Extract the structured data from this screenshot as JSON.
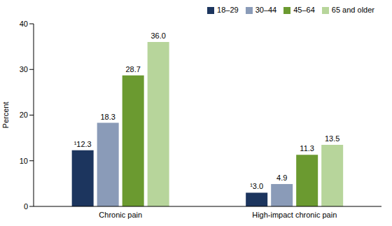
{
  "chart_data": {
    "type": "bar",
    "categories": [
      "Chronic pain",
      "High-impact chronic pain"
    ],
    "series": [
      {
        "name": "18–29",
        "color": "#1c355e",
        "values": [
          12.3,
          3.0
        ],
        "value_labels": [
          "¹12.3",
          "¹3.0"
        ]
      },
      {
        "name": "30–44",
        "color": "#8a9bb8",
        "values": [
          18.3,
          4.9
        ],
        "value_labels": [
          "18.3",
          "4.9"
        ]
      },
      {
        "name": "45–64",
        "color": "#6b9a30",
        "values": [
          28.7,
          11.3
        ],
        "value_labels": [
          "28.7",
          "11.3"
        ]
      },
      {
        "name": "65 and older",
        "color": "#b7d59b",
        "values": [
          36.0,
          13.5
        ],
        "value_labels": [
          "36.0",
          "13.5"
        ]
      }
    ],
    "y_label": "Percent",
    "ylim": [
      0,
      40
    ],
    "yticks": [
      0,
      10,
      20,
      30,
      40
    ],
    "legend": "upper right",
    "data_labels": true,
    "grid": false
  }
}
